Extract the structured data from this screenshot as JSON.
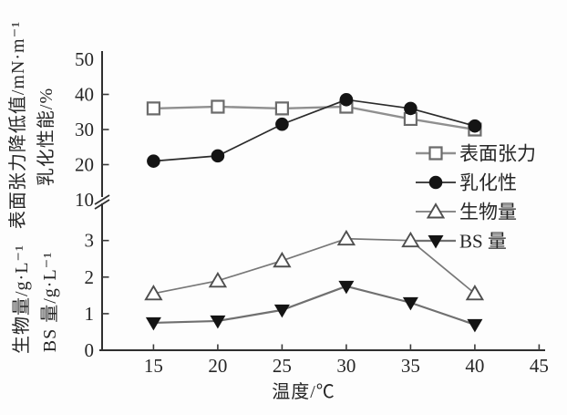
{
  "figure": {
    "background": "#fdfdfd",
    "xlabel": "温度/℃",
    "ylabels": {
      "top_outer": "表面张力降低值/mN·m⁻¹",
      "top_inner": "乳化性能/%",
      "bottom_outer": "生物量/g·L⁻¹",
      "bottom_inner": "BS 量/g·L⁻¹"
    }
  },
  "chart_data": {
    "type": "line",
    "title": "",
    "xlabel": "温度/℃",
    "x": [
      15,
      20,
      25,
      30,
      35,
      40
    ],
    "x_ticks": [
      15,
      20,
      25,
      30,
      35,
      40,
      45
    ],
    "x_range": [
      11,
      46
    ],
    "grid": false,
    "axis_break": {
      "present": true,
      "at_label": "10",
      "between": [
        "bottom_axis",
        "top_axis"
      ]
    },
    "top_axis": {
      "label": "表面张力降低值/mN·m⁻¹ 乳化性能/%",
      "tick_labels": [
        50,
        40,
        30,
        20,
        10
      ],
      "inner_ticks": [
        40,
        30,
        20
      ],
      "range": [
        10,
        50
      ]
    },
    "bottom_axis": {
      "label": "生物量/g·L⁻¹ BS量/g·L⁻¹",
      "tick_labels": [
        3,
        2,
        1,
        0
      ],
      "inner_ticks": [
        3,
        2,
        1
      ],
      "range": [
        0,
        3.5
      ]
    },
    "legend_position": "middle-right",
    "series": [
      {
        "name": "表面张力",
        "axis": "top",
        "marker": "open-square",
        "line_color": "#8f8f8f",
        "marker_color": "#6b6b6b",
        "values": [
          36,
          36.5,
          36,
          36.5,
          33,
          30
        ]
      },
      {
        "name": "乳化性",
        "axis": "top",
        "marker": "filled-circle",
        "line_color": "#2b2b2b",
        "marker_color": "#141414",
        "values": [
          21,
          22.5,
          31.5,
          38.5,
          36,
          31
        ]
      },
      {
        "name": "生物量",
        "axis": "bottom",
        "marker": "open-triangle-up",
        "line_color": "#787878",
        "marker_color": "#4f4f4f",
        "values": [
          1.55,
          1.9,
          2.45,
          3.05,
          3.0,
          1.55
        ]
      },
      {
        "name": "BS 量",
        "axis": "bottom",
        "marker": "filled-triangle-down",
        "line_color": "#707070",
        "marker_color": "#141414",
        "values": [
          0.75,
          0.8,
          1.1,
          1.75,
          1.3,
          0.7
        ]
      }
    ]
  }
}
